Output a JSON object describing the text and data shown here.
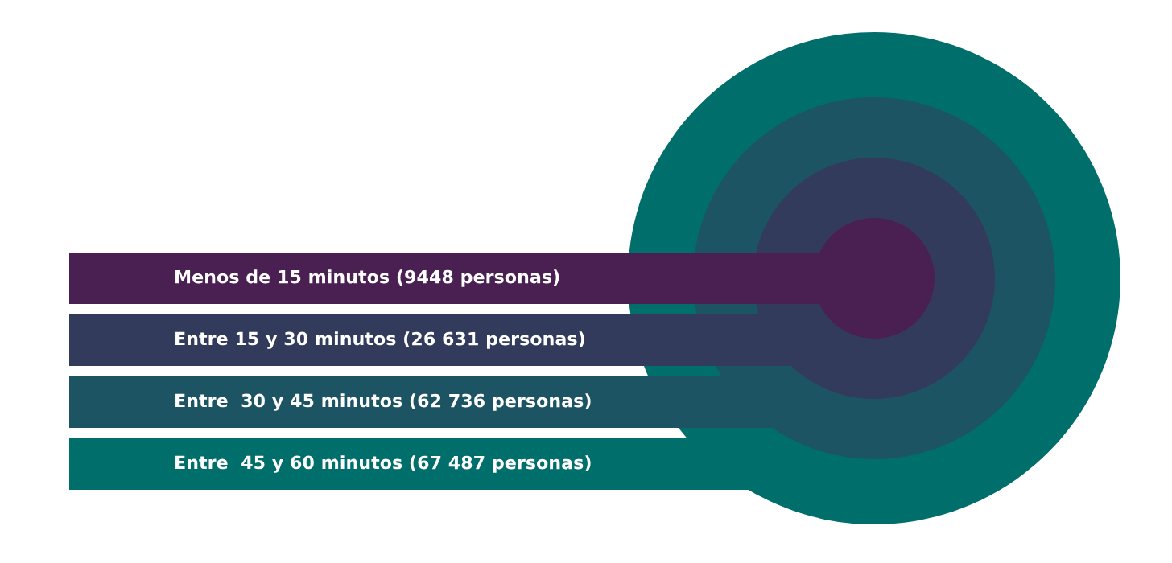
{
  "chart_data": {
    "type": "other",
    "categories": [
      "Menos de 15 minutos",
      "Entre 15 y 30 minutos",
      "Entre  30 y 45 minutos",
      "Entre  45 y 60 minutos"
    ],
    "values": [
      9448,
      26631,
      62736,
      67487
    ],
    "value_labels": [
      "(9448 personas)",
      "(26 631 personas)",
      "(62 736 personas)",
      "(67 487 personas)"
    ],
    "colors": [
      "#4a1f52",
      "#323b5c",
      "#1d5463",
      "#006e6b"
    ]
  }
}
